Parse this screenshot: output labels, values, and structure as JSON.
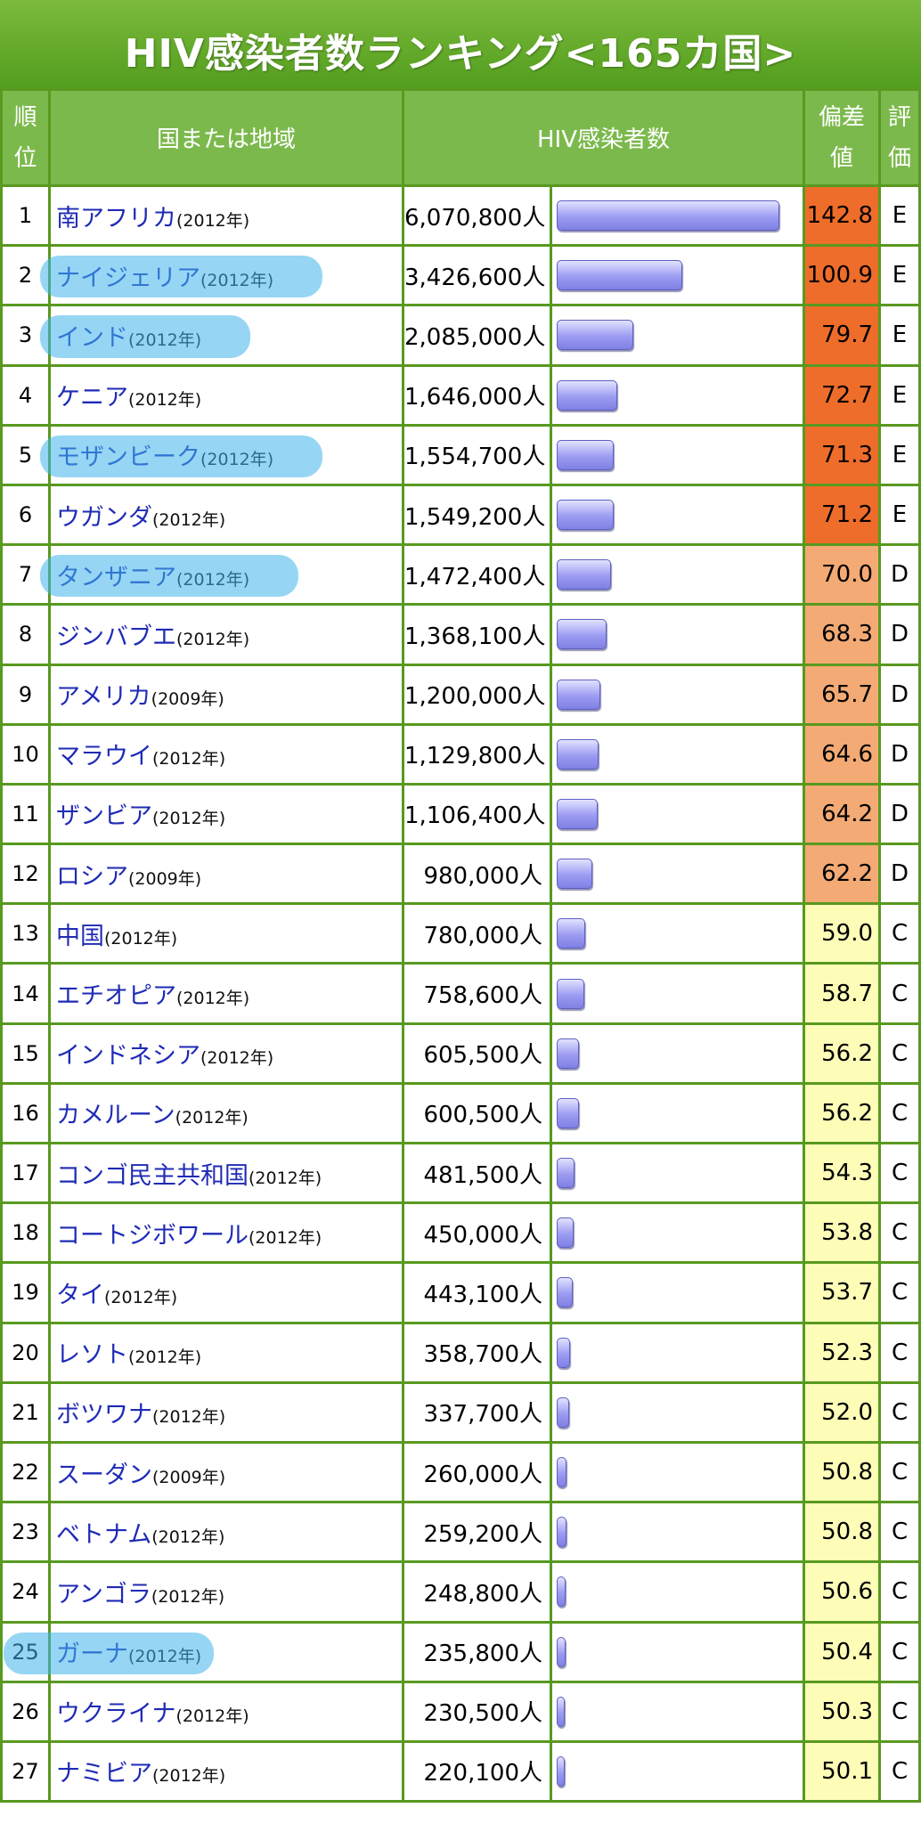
{
  "title": "HIV感染者数ランキング<165カ国>",
  "headers": {
    "rank": [
      "順",
      "位"
    ],
    "country": "国または地域",
    "count": "HIV感染者数",
    "score": [
      "偏差",
      "値"
    ],
    "grade": [
      "評",
      "価"
    ]
  },
  "colors": {
    "header_green": "#7cb94c",
    "border_green": "#58991f",
    "grade_E": "#ee6d2a",
    "grade_D": "#f3aa74",
    "grade_C": "#fdfdb8",
    "highlight": "#40b4eb"
  },
  "rows": [
    {
      "rank": "1",
      "country": "南アフリカ",
      "year": "(2012年)",
      "count": "6,070,800人",
      "value": 6070800,
      "score": "142.8",
      "grade": "E"
    },
    {
      "rank": "2",
      "country": "ナイジェリア",
      "year": "(2012年)",
      "count": "3,426,600人",
      "value": 3426600,
      "score": "100.9",
      "grade": "E",
      "highlighted": true
    },
    {
      "rank": "3",
      "country": "インド",
      "year": "(2012年)",
      "count": "2,085,000人",
      "value": 2085000,
      "score": "79.7",
      "grade": "E",
      "highlighted": true
    },
    {
      "rank": "4",
      "country": "ケニア",
      "year": "(2012年)",
      "count": "1,646,000人",
      "value": 1646000,
      "score": "72.7",
      "grade": "E"
    },
    {
      "rank": "5",
      "country": "モザンビーク",
      "year": "(2012年)",
      "count": "1,554,700人",
      "value": 1554700,
      "score": "71.3",
      "grade": "E",
      "highlighted": true
    },
    {
      "rank": "6",
      "country": "ウガンダ",
      "year": "(2012年)",
      "count": "1,549,200人",
      "value": 1549200,
      "score": "71.2",
      "grade": "E"
    },
    {
      "rank": "7",
      "country": "タンザニア",
      "year": "(2012年)",
      "count": "1,472,400人",
      "value": 1472400,
      "score": "70.0",
      "grade": "D",
      "highlighted": true
    },
    {
      "rank": "8",
      "country": "ジンバブエ",
      "year": "(2012年)",
      "count": "1,368,100人",
      "value": 1368100,
      "score": "68.3",
      "grade": "D"
    },
    {
      "rank": "9",
      "country": "アメリカ",
      "year": "(2009年)",
      "count": "1,200,000人",
      "value": 1200000,
      "score": "65.7",
      "grade": "D"
    },
    {
      "rank": "10",
      "country": "マラウイ",
      "year": "(2012年)",
      "count": "1,129,800人",
      "value": 1129800,
      "score": "64.6",
      "grade": "D"
    },
    {
      "rank": "11",
      "country": "ザンビア",
      "year": "(2012年)",
      "count": "1,106,400人",
      "value": 1106400,
      "score": "64.2",
      "grade": "D"
    },
    {
      "rank": "12",
      "country": "ロシア",
      "year": "(2009年)",
      "count": "980,000人",
      "value": 980000,
      "score": "62.2",
      "grade": "D"
    },
    {
      "rank": "13",
      "country": "中国",
      "year": "(2012年)",
      "count": "780,000人",
      "value": 780000,
      "score": "59.0",
      "grade": "C"
    },
    {
      "rank": "14",
      "country": "エチオピア",
      "year": "(2012年)",
      "count": "758,600人",
      "value": 758600,
      "score": "58.7",
      "grade": "C"
    },
    {
      "rank": "15",
      "country": "インドネシア",
      "year": "(2012年)",
      "count": "605,500人",
      "value": 605500,
      "score": "56.2",
      "grade": "C"
    },
    {
      "rank": "16",
      "country": "カメルーン",
      "year": "(2012年)",
      "count": "600,500人",
      "value": 600500,
      "score": "56.2",
      "grade": "C"
    },
    {
      "rank": "17",
      "country": "コンゴ民主共和国",
      "year": "(2012年)",
      "count": "481,500人",
      "value": 481500,
      "score": "54.3",
      "grade": "C"
    },
    {
      "rank": "18",
      "country": "コートジボワール",
      "year": "(2012年)",
      "count": "450,000人",
      "value": 450000,
      "score": "53.8",
      "grade": "C"
    },
    {
      "rank": "19",
      "country": "タイ",
      "year": "(2012年)",
      "count": "443,100人",
      "value": 443100,
      "score": "53.7",
      "grade": "C"
    },
    {
      "rank": "20",
      "country": "レソト",
      "year": "(2012年)",
      "count": "358,700人",
      "value": 358700,
      "score": "52.3",
      "grade": "C"
    },
    {
      "rank": "21",
      "country": "ボツワナ",
      "year": "(2012年)",
      "count": "337,700人",
      "value": 337700,
      "score": "52.0",
      "grade": "C"
    },
    {
      "rank": "22",
      "country": "スーダン",
      "year": "(2009年)",
      "count": "260,000人",
      "value": 260000,
      "score": "50.8",
      "grade": "C"
    },
    {
      "rank": "23",
      "country": "ベトナム",
      "year": "(2012年)",
      "count": "259,200人",
      "value": 259200,
      "score": "50.8",
      "grade": "C"
    },
    {
      "rank": "24",
      "country": "アンゴラ",
      "year": "(2012年)",
      "count": "248,800人",
      "value": 248800,
      "score": "50.6",
      "grade": "C"
    },
    {
      "rank": "25",
      "country": "ガーナ",
      "year": "(2012年)",
      "count": "235,800人",
      "value": 235800,
      "score": "50.4",
      "grade": "C",
      "highlighted": true
    },
    {
      "rank": "26",
      "country": "ウクライナ",
      "year": "(2012年)",
      "count": "230,500人",
      "value": 230500,
      "score": "50.3",
      "grade": "C"
    },
    {
      "rank": "27",
      "country": "ナミビア",
      "year": "(2012年)",
      "count": "220,100人",
      "value": 220100,
      "score": "50.1",
      "grade": "C"
    }
  ]
}
